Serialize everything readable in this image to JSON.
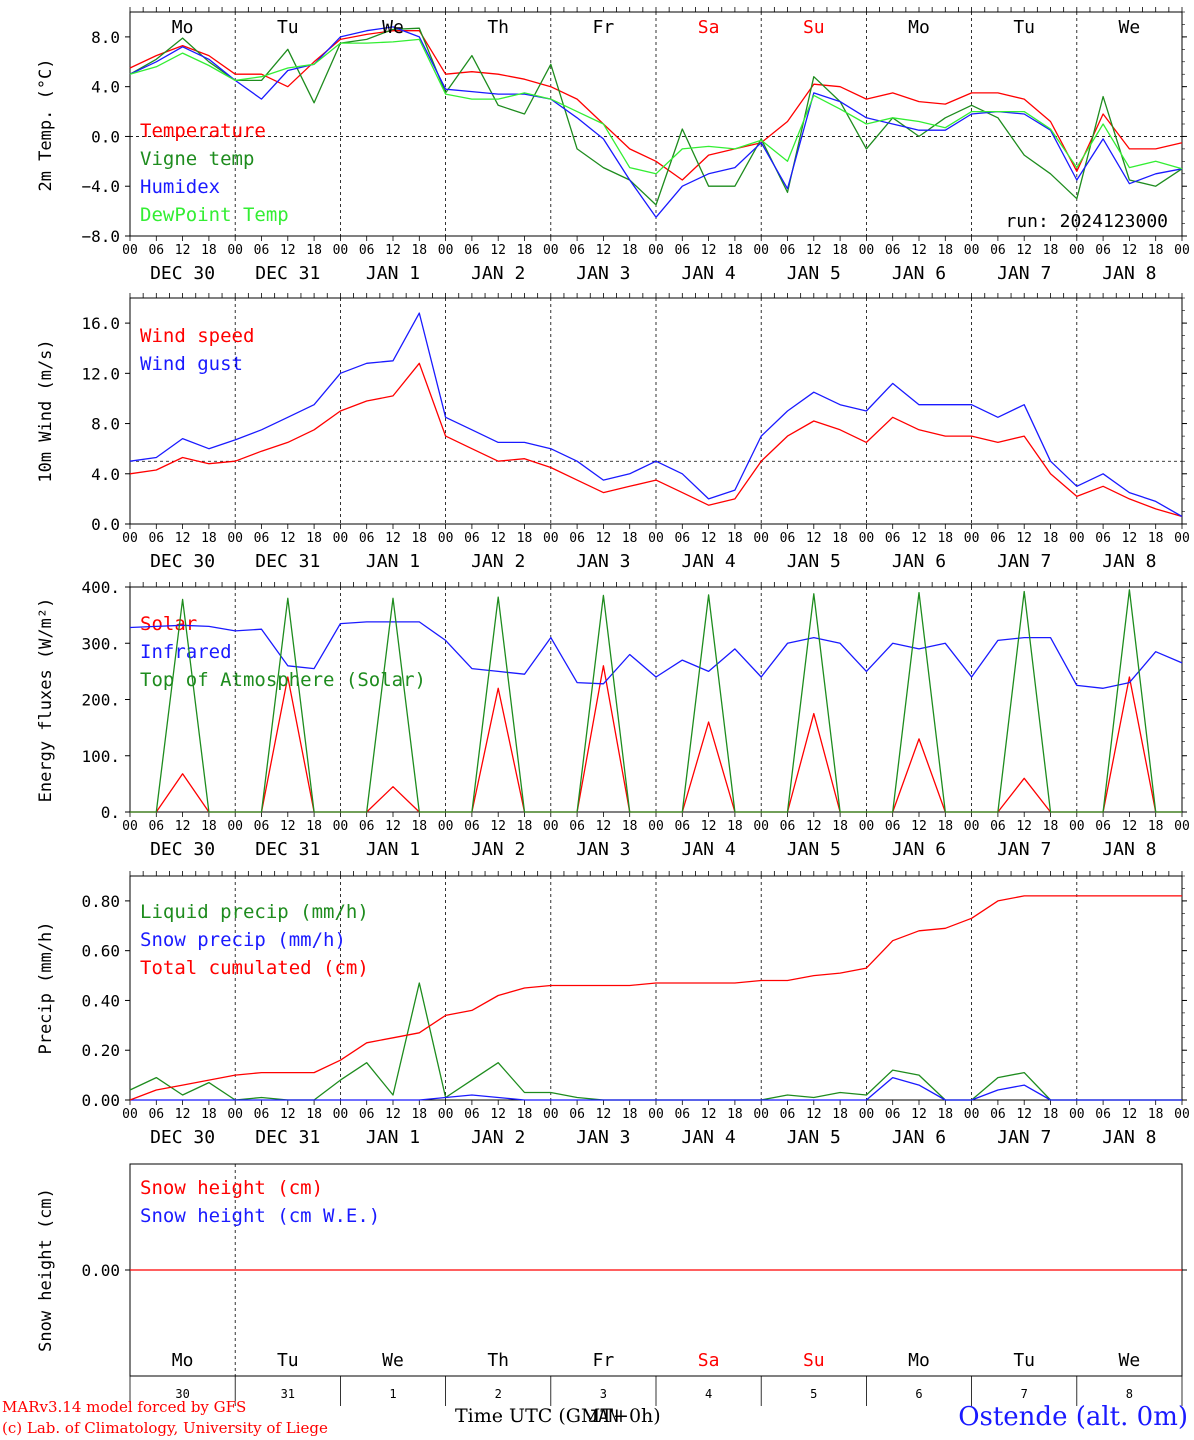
{
  "footer": {
    "credit_model": "MARv3.14 model forced by GFS",
    "credit_lab": "(c) Lab. of Climatology, University of Liege",
    "x_title": "Time UTC (GMT+0h)",
    "station": "Ostende (alt. 0m)"
  },
  "axis": {
    "hour_labels": [
      "00",
      "06",
      "12",
      "18"
    ],
    "end_hour_label": "00",
    "date_labels": [
      "DEC 30",
      "DEC 31",
      "JAN  1",
      "JAN  2",
      "JAN  3",
      "JAN  4",
      "JAN  5",
      "JAN  6",
      "JAN  7",
      "JAN  8"
    ],
    "weekdays": [
      "Mo",
      "Tu",
      "We",
      "Th",
      "Fr",
      "Sa",
      "Su",
      "Mo",
      "Tu",
      "We"
    ],
    "weekday_colors": [
      "#000000",
      "#000000",
      "#000000",
      "#000000",
      "#000000",
      "#ff0000",
      "#ff0000",
      "#000000",
      "#000000",
      "#000000"
    ],
    "bottom_day_numbers": [
      "30",
      "31",
      "1",
      "2",
      "3",
      "4",
      "5",
      "6",
      "7",
      "8"
    ],
    "bottom_month": "JAN",
    "time_range_hours": [
      0,
      240
    ]
  },
  "chart_data": [
    {
      "type": "line",
      "ylabel": "2m Temp. (°C)",
      "ylim": [
        -8,
        10
      ],
      "yticks": [
        -8,
        -4,
        0,
        4,
        8
      ],
      "ytick_labels": [
        "−8.0",
        "−4.0",
        "0.0",
        "4.0",
        "8.0"
      ],
      "reference_line": 0,
      "annotation": "run: 2024123000",
      "x_hours": [
        0,
        6,
        12,
        18,
        24,
        30,
        36,
        42,
        48,
        54,
        60,
        66,
        72,
        78,
        84,
        90,
        96,
        102,
        108,
        114,
        120,
        126,
        132,
        138,
        144,
        150,
        156,
        162,
        168,
        174,
        180,
        186,
        192,
        198,
        204,
        210,
        216,
        222,
        228,
        234,
        240
      ],
      "series": [
        {
          "name": "Temperature",
          "color": "#ff0000",
          "values": [
            5.5,
            6.5,
            7.3,
            6.5,
            5.0,
            5.0,
            4.0,
            6.0,
            7.8,
            8.2,
            8.5,
            8.5,
            5.0,
            5.2,
            5.0,
            4.6,
            4.0,
            3.0,
            1.0,
            -1.0,
            -2.0,
            -3.5,
            -1.5,
            -1.0,
            -0.5,
            1.2,
            4.2,
            4.0,
            3.0,
            3.5,
            2.8,
            2.6,
            3.5,
            3.5,
            3.0,
            1.2,
            -2.8,
            1.8,
            -1.0,
            -1.0,
            -0.5
          ]
        },
        {
          "name": "Vigne temp",
          "color": "#1e8c1e",
          "values": [
            5.0,
            6.2,
            7.9,
            6.0,
            4.5,
            4.5,
            7.0,
            2.7,
            7.5,
            7.8,
            8.6,
            8.7,
            3.5,
            6.5,
            2.5,
            1.8,
            5.8,
            -1.0,
            -2.5,
            -3.5,
            -5.5,
            0.6,
            -4.0,
            -4.0,
            -0.2,
            -4.5,
            4.8,
            2.8,
            -1.0,
            1.5,
            0.0,
            1.5,
            2.5,
            1.5,
            -1.5,
            -3.0,
            -5.0,
            3.2,
            -3.5,
            -4.0,
            -2.6
          ]
        },
        {
          "name": "Humidex",
          "color": "#1a1aff",
          "values": [
            5.0,
            6.0,
            7.2,
            6.2,
            4.5,
            3.0,
            5.3,
            5.8,
            8.0,
            8.5,
            8.8,
            8.0,
            3.8,
            3.6,
            3.4,
            3.4,
            3.0,
            1.5,
            -0.2,
            -3.5,
            -6.5,
            -4.0,
            -3.0,
            -2.5,
            -0.5,
            -4.2,
            3.5,
            2.8,
            1.5,
            1.0,
            0.5,
            0.5,
            1.8,
            2.0,
            1.8,
            0.5,
            -3.5,
            -0.2,
            -3.8,
            -3.0,
            -2.6
          ]
        },
        {
          "name": "DewPoint Temp",
          "color": "#33ee33",
          "values": [
            5.0,
            5.6,
            6.7,
            5.7,
            4.5,
            4.8,
            5.5,
            5.8,
            7.5,
            7.5,
            7.6,
            7.8,
            3.4,
            3.0,
            3.0,
            3.5,
            3.0,
            2.0,
            1.0,
            -2.5,
            -3.0,
            -1.0,
            -0.8,
            -1.0,
            -0.3,
            -2.0,
            3.3,
            2.2,
            1.0,
            1.5,
            1.2,
            0.7,
            2.0,
            2.0,
            2.0,
            0.6,
            -2.5,
            1.0,
            -2.5,
            -2.0,
            -2.6
          ]
        }
      ]
    },
    {
      "type": "line",
      "ylabel": "10m Wind (m/s)",
      "ylim": [
        0,
        18
      ],
      "yticks": [
        0,
        4,
        8,
        12,
        16
      ],
      "ytick_labels": [
        "0.0",
        "4.0",
        "8.0",
        "12.0",
        "16.0"
      ],
      "reference_line": 5,
      "x_hours": [
        0,
        6,
        12,
        18,
        24,
        30,
        36,
        42,
        48,
        54,
        60,
        66,
        72,
        78,
        84,
        90,
        96,
        102,
        108,
        114,
        120,
        126,
        132,
        138,
        144,
        150,
        156,
        162,
        168,
        174,
        180,
        186,
        192,
        198,
        204,
        210,
        216,
        222,
        228,
        234,
        240
      ],
      "series": [
        {
          "name": "Wind speed",
          "color": "#ff0000",
          "values": [
            4.0,
            4.3,
            5.3,
            4.8,
            5.0,
            5.8,
            6.5,
            7.5,
            9.0,
            9.8,
            10.2,
            12.8,
            7.0,
            6.0,
            5.0,
            5.2,
            4.5,
            3.5,
            2.5,
            3.0,
            3.5,
            2.5,
            1.5,
            2.0,
            5.0,
            7.0,
            8.2,
            7.5,
            6.5,
            8.5,
            7.5,
            7.0,
            7.0,
            6.5,
            7.0,
            4.0,
            2.2,
            3.0,
            2.0,
            1.2,
            0.6
          ]
        },
        {
          "name": "Wind gust",
          "color": "#1a1aff",
          "values": [
            5.0,
            5.3,
            6.8,
            6.0,
            6.7,
            7.5,
            8.5,
            9.5,
            12.0,
            12.8,
            13.0,
            16.8,
            8.5,
            7.5,
            6.5,
            6.5,
            6.0,
            5.0,
            3.5,
            4.0,
            5.0,
            4.0,
            2.0,
            2.7,
            7.0,
            9.0,
            10.5,
            9.5,
            9.0,
            11.2,
            9.5,
            9.5,
            9.5,
            8.5,
            9.5,
            5.0,
            3.0,
            4.0,
            2.5,
            1.8,
            0.6
          ]
        }
      ]
    },
    {
      "type": "line",
      "ylabel": "Energy fluxes (W/m²)",
      "ylim": [
        0,
        400
      ],
      "yticks": [
        0,
        100,
        200,
        300,
        400
      ],
      "ytick_labels": [
        "0.",
        "100.",
        "200.",
        "300.",
        "400."
      ],
      "x_hours": [
        0,
        6,
        12,
        18,
        24,
        30,
        36,
        42,
        48,
        54,
        60,
        66,
        72,
        78,
        84,
        90,
        96,
        102,
        108,
        114,
        120,
        126,
        132,
        138,
        144,
        150,
        156,
        162,
        168,
        174,
        180,
        186,
        192,
        198,
        204,
        210,
        216,
        222,
        228,
        234,
        240
      ],
      "series": [
        {
          "name": "Solar",
          "color": "#ff0000",
          "values": [
            0,
            0,
            68,
            0,
            0,
            0,
            240,
            0,
            0,
            0,
            45,
            0,
            0,
            0,
            220,
            0,
            0,
            0,
            260,
            0,
            0,
            0,
            160,
            0,
            0,
            0,
            175,
            0,
            0,
            0,
            130,
            0,
            0,
            0,
            60,
            0,
            0,
            0,
            240,
            0,
            0
          ]
        },
        {
          "name": "Infrared",
          "color": "#1a1aff",
          "values": [
            328,
            330,
            332,
            330,
            322,
            325,
            260,
            255,
            335,
            338,
            338,
            338,
            305,
            255,
            250,
            245,
            310,
            230,
            228,
            280,
            240,
            270,
            250,
            290,
            240,
            300,
            310,
            300,
            250,
            300,
            290,
            300,
            240,
            305,
            310,
            310,
            225,
            220,
            230,
            285,
            265
          ]
        },
        {
          "name": "Top of Atmosphere (Solar)",
          "color": "#1e8c1e",
          "values": [
            0,
            0,
            378,
            0,
            0,
            0,
            380,
            0,
            0,
            0,
            380,
            0,
            0,
            0,
            382,
            0,
            0,
            0,
            385,
            0,
            0,
            0,
            386,
            0,
            0,
            0,
            388,
            0,
            0,
            0,
            390,
            0,
            0,
            0,
            392,
            0,
            0,
            0,
            395,
            0,
            0
          ]
        }
      ]
    },
    {
      "type": "line",
      "ylabel": "Precip (mm/h)",
      "ylim": [
        0,
        0.9
      ],
      "yticks": [
        0,
        0.2,
        0.4,
        0.6,
        0.8
      ],
      "ytick_labels": [
        "0.00",
        "0.20",
        "0.40",
        "0.60",
        "0.80"
      ],
      "x_hours": [
        0,
        6,
        12,
        18,
        24,
        30,
        36,
        42,
        48,
        54,
        60,
        66,
        72,
        78,
        84,
        90,
        96,
        102,
        108,
        114,
        120,
        126,
        132,
        138,
        144,
        150,
        156,
        162,
        168,
        174,
        180,
        186,
        192,
        198,
        204,
        210,
        216,
        222,
        228,
        234,
        240
      ],
      "series": [
        {
          "name": "Liquid precip (mm/h)",
          "color": "#1e8c1e",
          "values": [
            0.04,
            0.09,
            0.02,
            0.07,
            0.0,
            0.01,
            0.0,
            0.0,
            0.08,
            0.15,
            0.02,
            0.47,
            0.01,
            0.08,
            0.15,
            0.03,
            0.03,
            0.01,
            0.0,
            0.0,
            0.0,
            0.0,
            0.0,
            0.0,
            0.0,
            0.02,
            0.01,
            0.03,
            0.02,
            0.12,
            0.1,
            0.0,
            0.0,
            0.09,
            0.11,
            0.0,
            0.0,
            0.0,
            0.0,
            0.0,
            0.0
          ]
        },
        {
          "name": "Snow precip (mm/h)",
          "color": "#1a1aff",
          "values": [
            0,
            0,
            0,
            0,
            0,
            0,
            0,
            0,
            0,
            0,
            0,
            0,
            0.01,
            0.02,
            0.01,
            0,
            0,
            0,
            0,
            0,
            0,
            0,
            0,
            0,
            0,
            0,
            0,
            0,
            0,
            0.09,
            0.06,
            0,
            0,
            0.04,
            0.06,
            0,
            0,
            0,
            0,
            0,
            0
          ]
        },
        {
          "name": "Total cumulated (cm)",
          "color": "#ff0000",
          "values": [
            0.0,
            0.04,
            0.06,
            0.08,
            0.1,
            0.11,
            0.11,
            0.11,
            0.16,
            0.23,
            0.25,
            0.27,
            0.34,
            0.36,
            0.42,
            0.45,
            0.46,
            0.46,
            0.46,
            0.46,
            0.47,
            0.47,
            0.47,
            0.47,
            0.48,
            0.48,
            0.5,
            0.51,
            0.53,
            0.64,
            0.68,
            0.69,
            0.73,
            0.8,
            0.82,
            0.82,
            0.82,
            0.82,
            0.82,
            0.82,
            0.82
          ]
        }
      ]
    },
    {
      "type": "line",
      "ylabel": "Snow height (cm)",
      "yticks": [
        0
      ],
      "ytick_labels": [
        "0.00"
      ],
      "series": [
        {
          "name": "Snow height (cm)",
          "color": "#ff0000",
          "values": [
            0,
            0
          ]
        },
        {
          "name": "Snow height (cm W.E.)",
          "color": "#1a1aff",
          "values": [
            0,
            0
          ]
        }
      ]
    }
  ]
}
